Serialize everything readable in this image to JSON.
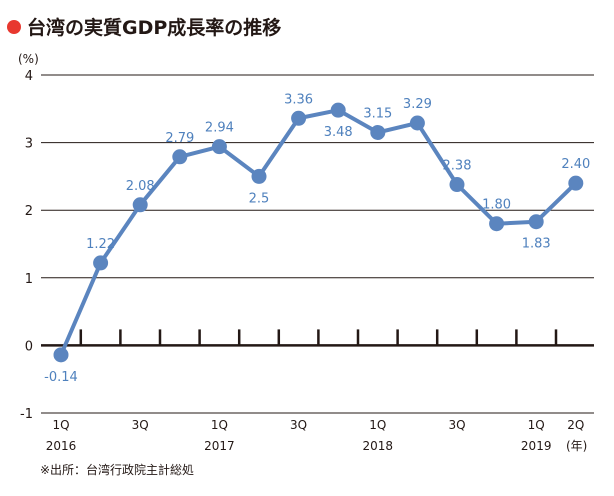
{
  "title": "台湾の実質GDP成長率の推移",
  "unit": "(%)",
  "source": "※出所：台湾行政院主計総処",
  "year_unit": "(年)",
  "colors": {
    "title_bullet": "#e8382f",
    "line": "#5b85bf",
    "label": "#4f81bd",
    "axis": "#231815"
  },
  "chart_data": {
    "type": "line",
    "title": "台湾の実質GDP成長率の推移",
    "ylabel": "(%)",
    "xlabel": "",
    "ylim": [
      -1,
      4
    ],
    "yticks": [
      4,
      3,
      2,
      1,
      0,
      -1
    ],
    "grid": true,
    "categories": [
      "2016 1Q",
      "2016 2Q",
      "2016 3Q",
      "2016 4Q",
      "2017 1Q",
      "2017 2Q",
      "2017 3Q",
      "2017 4Q",
      "2018 1Q",
      "2018 2Q",
      "2018 3Q",
      "2018 4Q",
      "2019 1Q",
      "2019 2Q"
    ],
    "x_tick_labels": [
      "1Q",
      "",
      "3Q",
      "",
      "1Q",
      "",
      "3Q",
      "",
      "1Q",
      "",
      "3Q",
      "",
      "1Q",
      "2Q"
    ],
    "x_year_labels": [
      "2016",
      "",
      "",
      "",
      "2017",
      "",
      "",
      "",
      "2018",
      "",
      "",
      "",
      "2019",
      ""
    ],
    "series": [
      {
        "values": [
          -0.14,
          1.22,
          2.08,
          2.79,
          2.94,
          2.5,
          3.36,
          3.48,
          3.15,
          3.29,
          2.38,
          1.8,
          1.83,
          2.4
        ]
      }
    ],
    "data_labels": [
      "-0.14",
      "1.22",
      "2.08",
      "2.79",
      "2.94",
      "2.5",
      "3.36",
      "3.48",
      "3.15",
      "3.29",
      "2.38",
      "1.80",
      "1.83",
      "2.40"
    ]
  }
}
